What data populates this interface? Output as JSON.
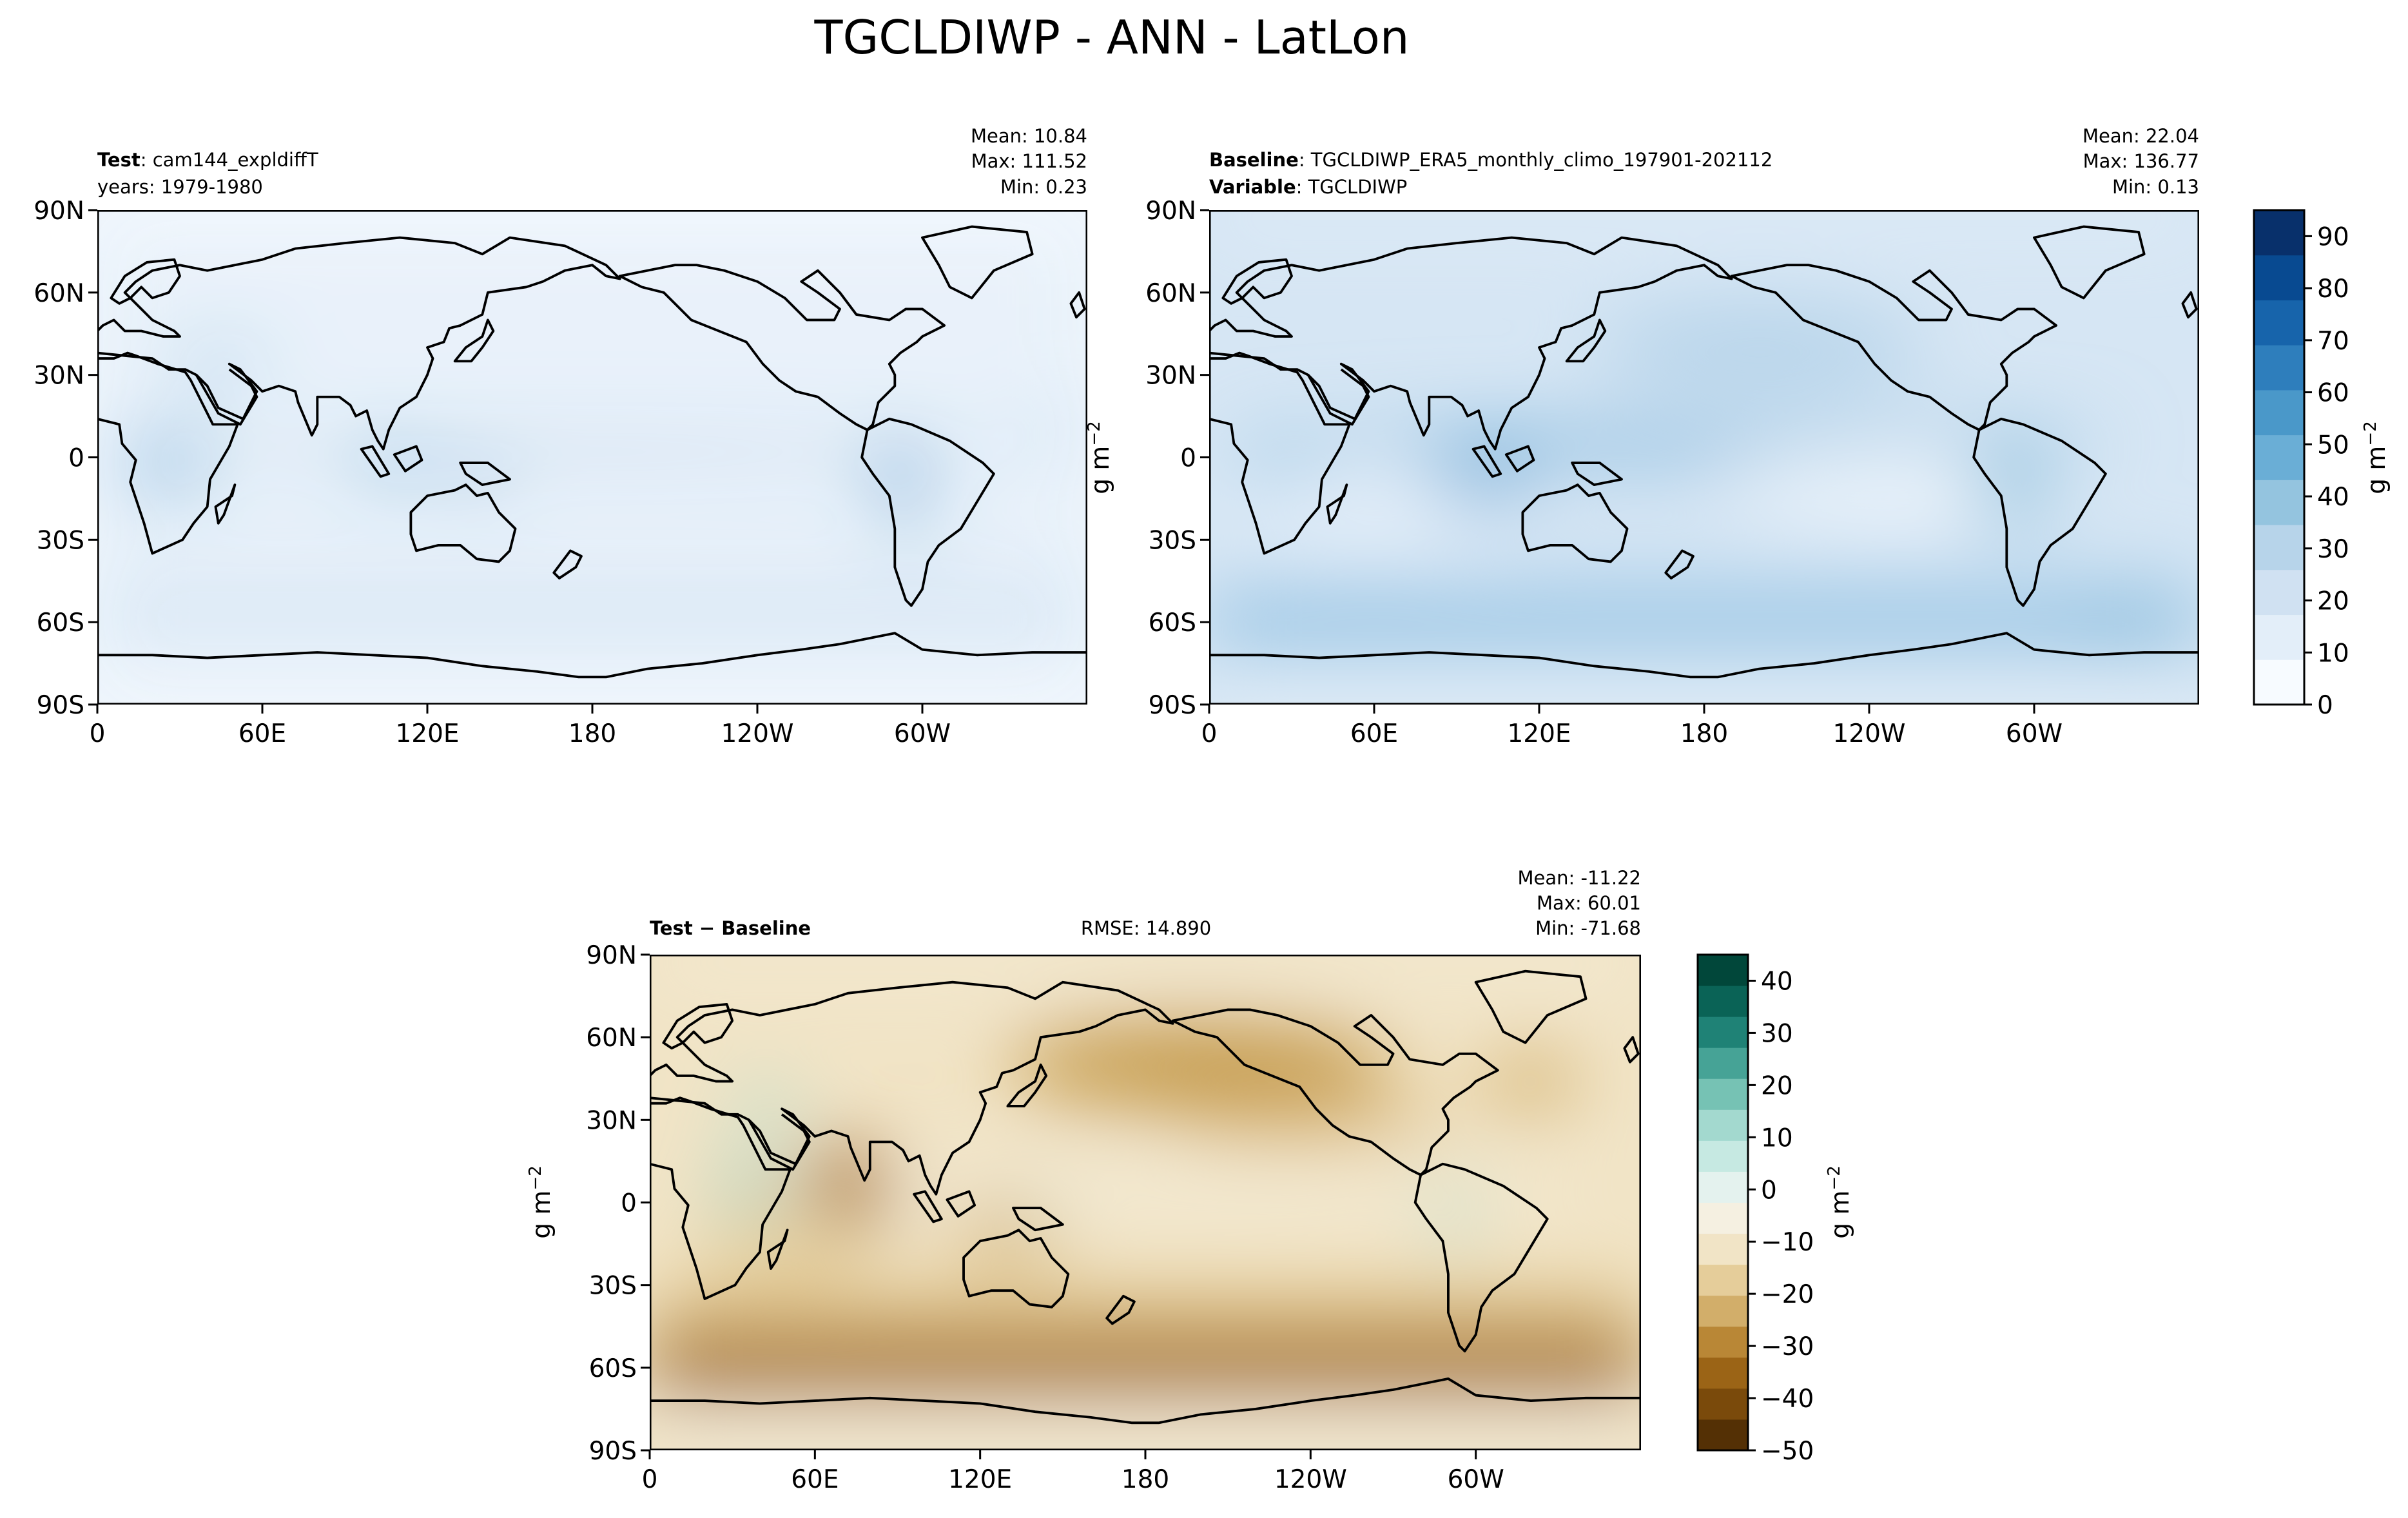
{
  "figure": {
    "title": "TGCLDIWP - ANN - LatLon"
  },
  "chart_data": [
    {
      "type": "heatmap",
      "panel": "test",
      "header_left": [
        {
          "bold": "Test",
          "text": ": cam144_expldiffT"
        },
        {
          "bold": "",
          "text": "years: 1979-1980"
        }
      ],
      "stats": [
        "Mean: 10.84",
        "Max: 111.52",
        "Min:  0.23"
      ],
      "x_ticks": [
        "0",
        "60E",
        "120E",
        "180",
        "120W",
        "60W"
      ],
      "y_ticks": [
        "90N",
        "60N",
        "30N",
        "0",
        "30S",
        "60S",
        "90S"
      ],
      "x_range_deg": [
        0,
        360
      ],
      "y_range_deg": [
        -90,
        90
      ],
      "field_summary": "annual mean ice water path; higher over tropical convection (Maritime Continent, Amazon, Congo) and Tibetan Plateau",
      "colormap": "Blues",
      "color_range": [
        0,
        95
      ]
    },
    {
      "type": "heatmap",
      "panel": "baseline",
      "header_left": [
        {
          "bold": "Baseline",
          "text": ": TGCLDIWP_ERA5_monthly_climo_197901-202112"
        },
        {
          "bold": "Variable",
          "text": ": TGCLDIWP"
        }
      ],
      "stats": [
        "Mean: 22.04",
        "Max: 136.77",
        "Min:  0.13"
      ],
      "x_ticks": [
        "0",
        "60E",
        "120E",
        "180",
        "120W",
        "60W"
      ],
      "y_ticks": [
        "90N",
        "60N",
        "30N",
        "0",
        "30S",
        "60S",
        "90S"
      ],
      "x_range_deg": [
        0,
        360
      ],
      "y_range_deg": [
        -90,
        90
      ],
      "field_summary": "ERA5 ice water path; ITCZ band and Southern Ocean storm track elevated",
      "colormap": "Blues",
      "color_range": [
        0,
        95
      ],
      "colorbar": {
        "ticks": [
          "0",
          "10",
          "20",
          "30",
          "40",
          "50",
          "60",
          "70",
          "80",
          "90"
        ],
        "label": "g m",
        "label_sup": "−2",
        "colors": [
          "#f7fbff",
          "#e3eef9",
          "#d0e1f2",
          "#b7d4ea",
          "#94c4df",
          "#6aaed6",
          "#4a98c9",
          "#2e7ebc",
          "#1764ab",
          "#084a91",
          "#08306b"
        ]
      }
    },
    {
      "type": "heatmap",
      "panel": "difference",
      "header_left": [
        {
          "bold": "Test − Baseline",
          "text": ""
        }
      ],
      "rmse": "RMSE: 14.890",
      "stats": [
        "Mean: -11.22",
        "Max: 60.01",
        "Min: -71.68"
      ],
      "x_ticks": [
        "0",
        "60E",
        "120E",
        "180",
        "120W",
        "60W"
      ],
      "y_ticks": [
        "90N",
        "60N",
        "30N",
        "0",
        "30S",
        "60S",
        "90S"
      ],
      "x_range_deg": [
        0,
        360
      ],
      "y_range_deg": [
        -90,
        90
      ],
      "field_summary": "model minus ERA5; broadly negative (brown), strongest over Southern Ocean, Indian Ocean and N. Pacific; positive (teal) over Tibet, E. Africa and Andes",
      "colormap": "BrBG",
      "color_range": [
        -50,
        45
      ],
      "colorbar": {
        "ticks": [
          "40",
          "30",
          "20",
          "10",
          "0",
          "−10",
          "−20",
          "−30",
          "−40",
          "−50"
        ],
        "label": "g m",
        "label_sup": "−2",
        "colors": [
          "#543005",
          "#7a4a0b",
          "#9b6416",
          "#b98736",
          "#d2ae6a",
          "#e5cd9a",
          "#f1e4c6",
          "#f5f0e1",
          "#e4f2ee",
          "#c6e9e2",
          "#a3d9cf",
          "#76c2b4",
          "#46a396",
          "#1f8276",
          "#0a6356",
          "#01473a"
        ]
      },
      "left_axis_label": "g m",
      "left_axis_sup": "−2"
    }
  ]
}
